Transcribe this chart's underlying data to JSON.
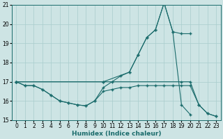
{
  "xlabel": "Humidex (Indice chaleur)",
  "ylabel": "",
  "xlim": [
    -0.5,
    23.5
  ],
  "ylim": [
    15,
    21
  ],
  "yticks": [
    15,
    16,
    17,
    18,
    19,
    20,
    21
  ],
  "xticks": [
    0,
    1,
    2,
    3,
    4,
    5,
    6,
    7,
    8,
    9,
    10,
    11,
    12,
    13,
    14,
    15,
    16,
    17,
    18,
    19,
    20,
    21,
    22,
    23
  ],
  "bg_color": "#cde4e4",
  "grid_color": "#a8cccc",
  "line_color": "#1a6b6b",
  "series": [
    {
      "x": [
        0,
        1,
        2,
        3,
        4,
        5,
        6,
        7,
        8,
        9,
        10,
        11,
        12,
        13,
        14,
        15,
        16,
        17,
        18,
        19,
        20
      ],
      "y": [
        17.0,
        16.8,
        16.8,
        16.6,
        16.3,
        16.0,
        15.9,
        15.8,
        15.75,
        16.0,
        16.7,
        17.0,
        17.3,
        17.5,
        18.4,
        19.3,
        19.7,
        21.1,
        19.6,
        15.8,
        15.3
      ]
    },
    {
      "x": [
        0,
        10,
        19,
        20,
        21,
        22,
        23
      ],
      "y": [
        17.0,
        17.0,
        17.0,
        17.0,
        15.8,
        15.35,
        15.2
      ]
    },
    {
      "x": [
        0,
        10,
        13,
        14,
        15,
        16,
        17,
        18,
        19,
        20
      ],
      "y": [
        17.0,
        17.0,
        17.5,
        18.4,
        19.3,
        19.7,
        21.1,
        19.6,
        19.5,
        19.5
      ]
    },
    {
      "x": [
        0,
        1,
        2,
        3,
        4,
        5,
        6,
        7,
        8,
        9,
        10,
        11,
        12,
        13,
        14,
        15,
        16,
        17,
        18,
        19,
        20,
        21,
        22,
        23
      ],
      "y": [
        17.0,
        16.8,
        16.8,
        16.6,
        16.3,
        16.0,
        15.9,
        15.8,
        15.75,
        16.0,
        16.5,
        16.6,
        16.7,
        16.7,
        16.8,
        16.8,
        16.8,
        16.8,
        16.8,
        16.8,
        16.8,
        15.8,
        15.35,
        15.2
      ]
    }
  ]
}
